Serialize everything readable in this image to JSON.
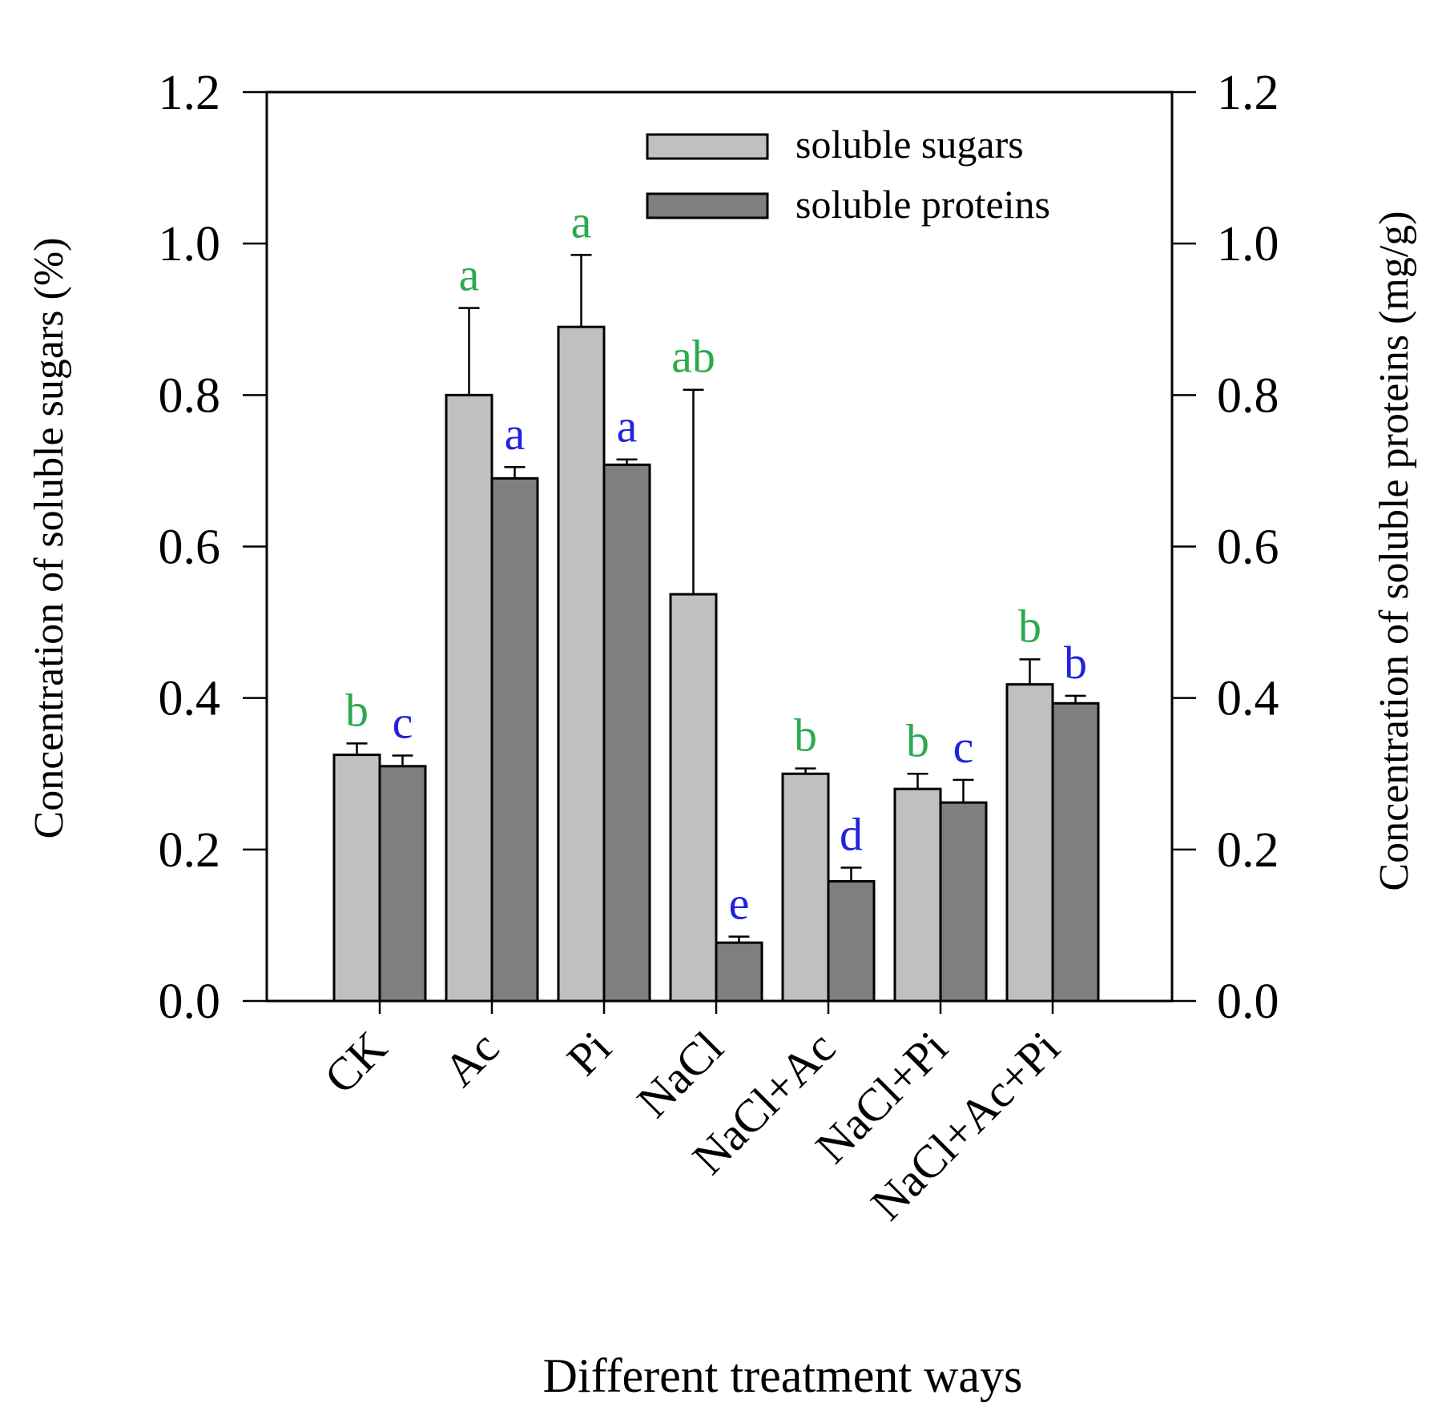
{
  "chart_data": {
    "type": "bar",
    "xlabel": "Different treatment ways",
    "ylabel": "Concentration of soluble sugars (%)",
    "ylabel_right": "Concentration of soluble proteins (mg/g)",
    "ylim": [
      0,
      1.2
    ],
    "yticks": [
      "0.0",
      "0.2",
      "0.4",
      "0.6",
      "0.8",
      "1.0",
      "1.2"
    ],
    "categories": [
      "CK",
      "Ac",
      "Pi",
      "NaCl",
      "NaCl+Ac",
      "NaCl+Pi",
      "NaCl+Ac+Pi"
    ],
    "legend_position": "top-right",
    "series": [
      {
        "name": "soluble sugars",
        "axis": "left",
        "color": "#c0c0c0",
        "letter_color": "#2eaa4e",
        "values": [
          0.325,
          0.8,
          0.89,
          0.537,
          0.3,
          0.28,
          0.418
        ],
        "errors": [
          0.015,
          0.115,
          0.095,
          0.27,
          0.007,
          0.02,
          0.033
        ],
        "letters": [
          "b",
          "a",
          "a",
          "ab",
          "b",
          "b",
          "b"
        ]
      },
      {
        "name": "soluble proteins",
        "axis": "right",
        "color": "#7f7f7f",
        "letter_color": "#2222dd",
        "values": [
          0.31,
          0.69,
          0.708,
          0.077,
          0.158,
          0.262,
          0.393
        ],
        "errors": [
          0.014,
          0.015,
          0.007,
          0.008,
          0.018,
          0.03,
          0.01
        ],
        "letters": [
          "c",
          "a",
          "a",
          "e",
          "d",
          "c",
          "b"
        ]
      }
    ]
  }
}
